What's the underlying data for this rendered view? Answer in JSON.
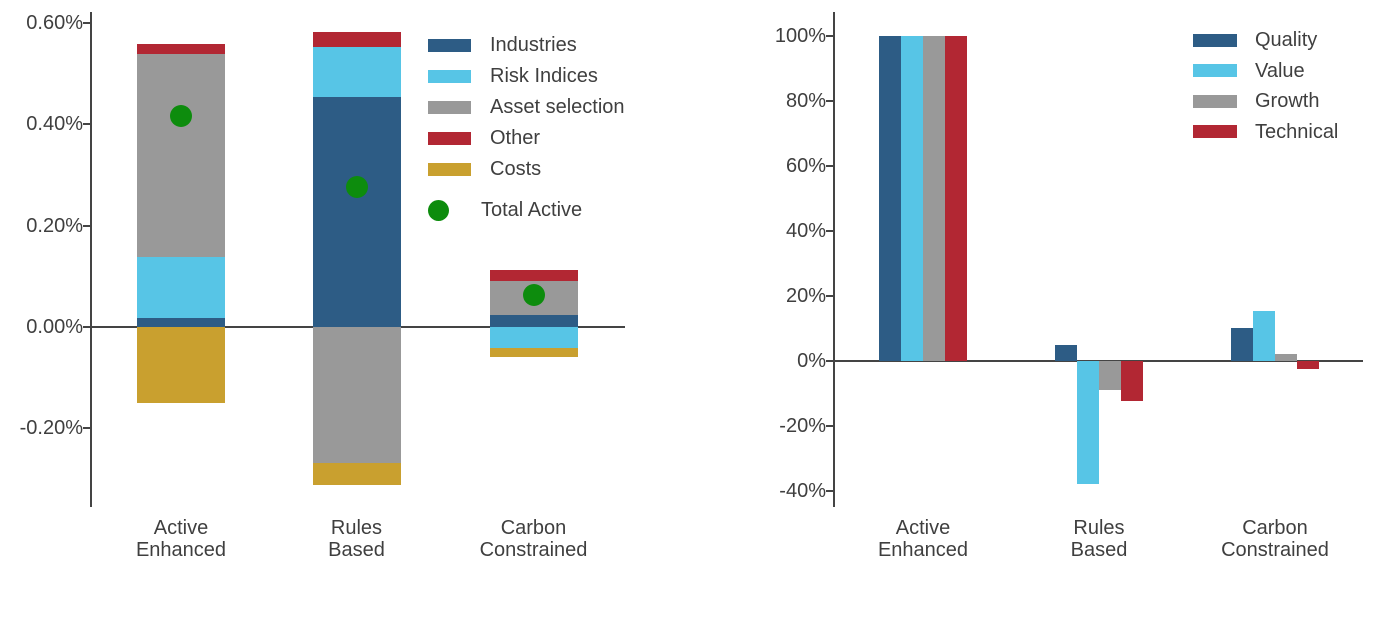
{
  "figure": {
    "background": "#ffffff",
    "text_color": "#3f3f3f",
    "axis_color": "#444444"
  },
  "chart_data": [
    {
      "id": "performance-attribution",
      "type": "bar",
      "subtype": "stacked",
      "orientation": "vertical",
      "grid": false,
      "legend_position": "inside-top-right",
      "categories": [
        "Active Enhanced",
        "Rules Based",
        "Carbon Constrained"
      ],
      "series": [
        {
          "name": "Industries",
          "color": "#2d5c85",
          "values": [
            0.018,
            0.453,
            0.024
          ]
        },
        {
          "name": "Risk Indices",
          "color": "#57c5e6",
          "values": [
            0.119,
            0.099,
            -0.042
          ]
        },
        {
          "name": "Asset selection",
          "color": "#999999",
          "values": [
            0.402,
            -0.269,
            0.067
          ]
        },
        {
          "name": "Other",
          "color": "#b22733",
          "values": [
            0.018,
            0.03,
            0.022
          ]
        },
        {
          "name": "Costs",
          "color": "#c9a02f",
          "values": [
            -0.15,
            -0.042,
            -0.018
          ]
        }
      ],
      "marker_series": {
        "name": "Total Active",
        "color": "#0d8c0d",
        "values": [
          0.415,
          0.275,
          0.063
        ]
      },
      "ylabel_unit": "percent",
      "ylim": [
        -0.355,
        0.621
      ],
      "yticks": [
        0.6,
        0.4,
        0.2,
        0.0,
        -0.2
      ],
      "ytick_labels": [
        "0.60%",
        "0.40%",
        "0.20%",
        "0.00%",
        "-0.20%"
      ]
    },
    {
      "id": "factor-exposures",
      "type": "bar",
      "subtype": "grouped",
      "orientation": "vertical",
      "grid": false,
      "legend_position": "inside-top-right",
      "categories": [
        "Active Enhanced",
        "Rules Based",
        "Carbon Constrained"
      ],
      "series": [
        {
          "name": "Quality",
          "color": "#2d5c85",
          "values": [
            100,
            5,
            10
          ]
        },
        {
          "name": "Value",
          "color": "#57c5e6",
          "values": [
            100,
            -38,
            15.5
          ]
        },
        {
          "name": "Growth",
          "color": "#999999",
          "values": [
            100,
            -9,
            2
          ]
        },
        {
          "name": "Technical",
          "color": "#b22733",
          "values": [
            100,
            -12.5,
            -2.5
          ]
        }
      ],
      "ylabel_unit": "percent",
      "ylim": [
        -45,
        107.5
      ],
      "yticks": [
        100,
        80,
        60,
        40,
        20,
        0,
        -20,
        -40
      ],
      "ytick_labels": [
        "100%",
        "80%",
        "60%",
        "40%",
        "20%",
        "0%",
        "-20%",
        "-40%"
      ]
    }
  ]
}
